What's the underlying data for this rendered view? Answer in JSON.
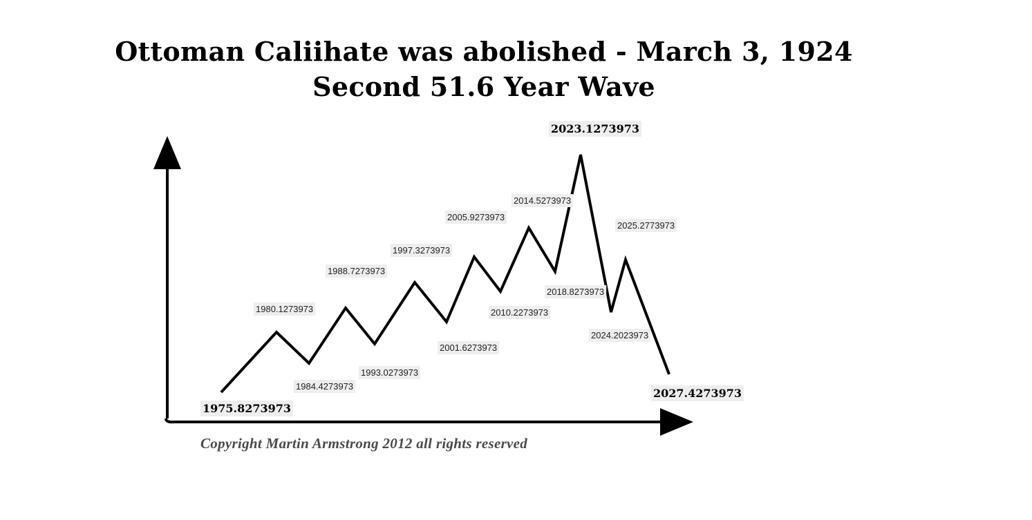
{
  "title": {
    "line1": "Ottoman Caliihate was abolished - March 3, 1924",
    "line2": "Second 51.6 Year Wave"
  },
  "copyright": "Copyright Martin Armstrong 2012 all rights reserved",
  "wave_points": [
    {
      "label": "1975.8273973",
      "kind": "trough",
      "style": "big"
    },
    {
      "label": "1980.1273973",
      "kind": "peak",
      "style": "small"
    },
    {
      "label": "1984.4273973",
      "kind": "trough",
      "style": "small"
    },
    {
      "label": "1988.7273973",
      "kind": "peak",
      "style": "small"
    },
    {
      "label": "1993.0273973",
      "kind": "trough",
      "style": "small"
    },
    {
      "label": "1997.3273973",
      "kind": "peak",
      "style": "small"
    },
    {
      "label": "2001.6273973",
      "kind": "trough",
      "style": "small"
    },
    {
      "label": "2005.9273973",
      "kind": "peak",
      "style": "small"
    },
    {
      "label": "2010.2273973",
      "kind": "trough",
      "style": "small"
    },
    {
      "label": "2014.5273973",
      "kind": "peak",
      "style": "small"
    },
    {
      "label": "2018.8273973",
      "kind": "trough",
      "style": "small"
    },
    {
      "label": "2023.1273973",
      "kind": "peak",
      "style": "big"
    },
    {
      "label": "2024.2023973",
      "kind": "trough",
      "style": "small"
    },
    {
      "label": "2025.2773973",
      "kind": "peak",
      "style": "small"
    },
    {
      "label": "2027.4273973",
      "kind": "trough",
      "style": "big"
    }
  ]
}
